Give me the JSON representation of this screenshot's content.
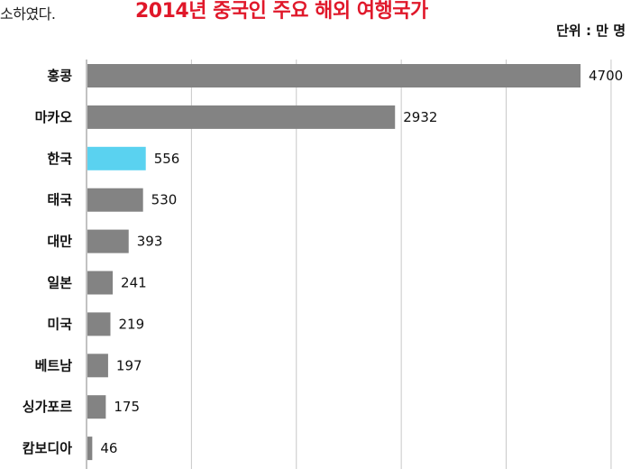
{
  "page": {
    "top_fragment": "소하였다.",
    "unit": "단위 : 만 명"
  },
  "colors": {
    "bar": "#838383",
    "highlight": "#5ad2f0",
    "title": "#e0182a",
    "grid": "#c8c8c8"
  },
  "chart_data": {
    "type": "bar",
    "orientation": "horizontal",
    "title": "2014년 중국인 주요 해외 여행국가",
    "unit": "단위 : 만 명",
    "categories": [
      "홍콩",
      "마카오",
      "한국",
      "태국",
      "대만",
      "일본",
      "미국",
      "베트남",
      "싱가포르",
      "캄보디아"
    ],
    "values": [
      4700,
      2932,
      556,
      530,
      393,
      241,
      219,
      197,
      175,
      46
    ],
    "highlight_category": "한국",
    "xlim": [
      0,
      5000
    ],
    "grid": true,
    "legend": "none"
  }
}
